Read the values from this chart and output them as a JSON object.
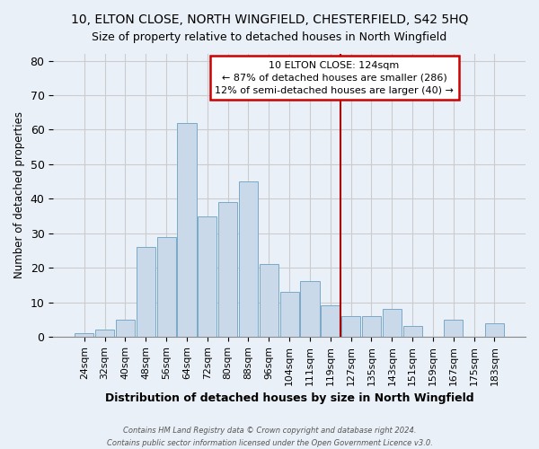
{
  "title": "10, ELTON CLOSE, NORTH WINGFIELD, CHESTERFIELD, S42 5HQ",
  "subtitle": "Size of property relative to detached houses in North Wingfield",
  "xlabel": "Distribution of detached houses by size in North Wingfield",
  "ylabel": "Number of detached properties",
  "bar_labels": [
    "24sqm",
    "32sqm",
    "40sqm",
    "48sqm",
    "56sqm",
    "64sqm",
    "72sqm",
    "80sqm",
    "88sqm",
    "96sqm",
    "104sqm",
    "111sqm",
    "119sqm",
    "127sqm",
    "135sqm",
    "143sqm",
    "151sqm",
    "159sqm",
    "167sqm",
    "175sqm",
    "183sqm"
  ],
  "bar_heights": [
    1,
    2,
    5,
    26,
    29,
    62,
    35,
    39,
    45,
    21,
    13,
    16,
    9,
    6,
    6,
    8,
    3,
    0,
    5,
    0,
    4
  ],
  "bar_color": "#c9d9ea",
  "bar_edgecolor": "#7aaac8",
  "vline_color": "#aa0000",
  "annotation_title": "10 ELTON CLOSE: 124sqm",
  "annotation_line1": "← 87% of detached houses are smaller (286)",
  "annotation_line2": "12% of semi-detached houses are larger (40) →",
  "annotation_box_edgecolor": "#cc0000",
  "ylim": [
    0,
    82
  ],
  "yticks": [
    0,
    10,
    20,
    30,
    40,
    50,
    60,
    70,
    80
  ],
  "grid_color": "#cccccc",
  "background_color": "#eaf0f8",
  "footer_line1": "Contains HM Land Registry data © Crown copyright and database right 2024.",
  "footer_line2": "Contains public sector information licensed under the Open Government Licence v3.0."
}
